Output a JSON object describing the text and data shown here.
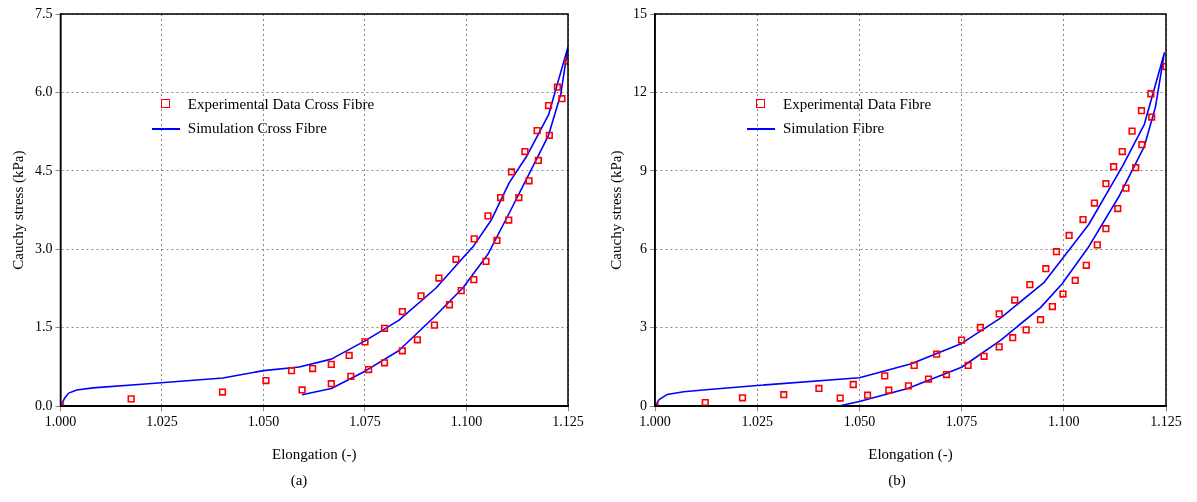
{
  "chart_data": [
    {
      "type": "scatter",
      "xlabel": "Elongation (-)",
      "ylabel": "Cauchy stress (kPa)",
      "annotations": [
        "(a)"
      ],
      "grid": true,
      "legend": "top",
      "xlim": [
        1.0,
        1.125
      ],
      "xticks": [
        {
          "value": 1.0,
          "label": "1.000"
        },
        1.025,
        {
          "value": 1.05,
          "label": "1.050"
        },
        1.075,
        {
          "value": 1.1,
          "label": "1.100"
        },
        1.125
      ],
      "ylim": [
        0,
        7.5
      ],
      "yticks": [
        {
          "value": 0,
          "label": "0.0"
        },
        1.5,
        {
          "value": 3,
          "label": "3.0"
        },
        4.5,
        {
          "value": 6,
          "label": "6.0"
        },
        7.5
      ],
      "series": [
        {
          "name": "Experimental Data Cross Fibre",
          "type": "scatter",
          "marker": "square",
          "color": "#ff0000",
          "x": [
            1.0,
            1.0174,
            1.0399,
            1.0506,
            1.0569,
            1.0595,
            1.0621,
            1.0667,
            1.0667,
            1.0711,
            1.0715,
            1.075,
            1.0759,
            1.0798,
            1.0798,
            1.0842,
            1.0842,
            1.0888,
            1.0879,
            1.0932,
            1.0921,
            1.0974,
            1.0958,
            1.0987,
            1.1019,
            1.1018,
            1.1048,
            1.1053,
            1.1075,
            1.1084,
            1.1104,
            1.1111,
            1.1129,
            1.1144,
            1.1154,
            1.1174,
            1.1177,
            1.1202,
            1.1204,
            1.1224,
            1.1235,
            1.125
          ],
          "values": [
            0,
            0.14,
            0.27,
            0.49,
            0.68,
            0.31,
            0.72,
            0.8,
            0.43,
            0.97,
            0.57,
            1.23,
            0.7,
            1.49,
            0.83,
            1.81,
            1.06,
            2.11,
            1.27,
            2.45,
            1.55,
            2.81,
            1.94,
            2.21,
            3.2,
            2.42,
            2.77,
            3.64,
            3.17,
            3.99,
            3.56,
            4.48,
            3.99,
            4.87,
            4.31,
            5.27,
            4.7,
            5.75,
            5.18,
            6.1,
            5.88,
            6.6
          ]
        },
        {
          "name": "Simulation Cross Fibre",
          "type": "line",
          "color": "#0000ff",
          "x": [
            1.0,
            1.001,
            1.002,
            1.004,
            1.008,
            1.02,
            1.04,
            1.05,
            1.0588,
            1.0667,
            1.075,
            1.0833,
            1.0925,
            1.1018,
            1.1061,
            1.1105,
            1.1149,
            1.1202,
            1.125,
            1.1232,
            1.1202,
            1.1158,
            1.1105,
            1.1053,
            1.0991,
            1.0921,
            1.0833,
            1.075,
            1.0667,
            1.0595
          ],
          "values": [
            0,
            0.15,
            0.25,
            0.31,
            0.35,
            0.42,
            0.54,
            0.68,
            0.75,
            0.9,
            1.25,
            1.64,
            2.26,
            3.07,
            3.56,
            4.27,
            4.79,
            5.57,
            6.87,
            5.96,
            5.18,
            4.5,
            3.69,
            2.91,
            2.26,
            1.71,
            1.06,
            0.67,
            0.34,
            0.22
          ]
        }
      ]
    },
    {
      "type": "scatter",
      "xlabel": "Elongation (-)",
      "ylabel": "Cauchy stress (kPa)",
      "annotations": [
        "(b)"
      ],
      "grid": true,
      "legend": "top",
      "xlim": [
        1.0,
        1.125
      ],
      "xticks": [
        {
          "value": 1.0,
          "label": "1.000"
        },
        1.025,
        {
          "value": 1.05,
          "label": "1.050"
        },
        1.075,
        {
          "value": 1.1,
          "label": "1.100"
        },
        1.125
      ],
      "ylim": [
        0,
        15
      ],
      "yticks": [
        0,
        3,
        6,
        9,
        12,
        15
      ],
      "series": [
        {
          "name": "Experimental Data Fibre",
          "type": "scatter",
          "marker": "square",
          "color": "#ff0000",
          "x": [
            1.0,
            1.0123,
            1.0214,
            1.0315,
            1.0401,
            1.0453,
            1.0485,
            1.052,
            1.0562,
            1.0572,
            1.062,
            1.0669,
            1.0713,
            1.0634,
            1.0689,
            1.075,
            1.0766,
            1.0805,
            1.0796,
            1.0842,
            1.0842,
            1.0875,
            1.088,
            1.0908,
            1.0917,
            1.0943,
            1.0956,
            1.0972,
            1.0982,
            1.0998,
            1.1013,
            1.1028,
            1.1047,
            1.1055,
            1.1075,
            1.1082,
            1.1103,
            1.1103,
            1.1122,
            1.1132,
            1.1143,
            1.1152,
            1.1167,
            1.1176,
            1.119,
            1.1191,
            1.1213,
            1.1215,
            1.125
          ],
          "values": [
            0,
            0.14,
            0.32,
            0.44,
            0.68,
            0.31,
            0.83,
            0.42,
            1.16,
            0.61,
            0.78,
            1.04,
            1.21,
            1.56,
            1.99,
            2.53,
            1.56,
            1.91,
            3.01,
            2.27,
            3.53,
            2.62,
            4.06,
            2.92,
            4.65,
            3.31,
            5.26,
            3.81,
            5.91,
            4.29,
            6.53,
            4.81,
            7.14,
            5.39,
            7.77,
            6.17,
            8.51,
            6.79,
            9.16,
            7.56,
            9.74,
            8.34,
            10.52,
            9.12,
            11.3,
            10.0,
            11.95,
            11.06,
            12.99
          ]
        },
        {
          "name": "Simulation Fibre",
          "type": "line",
          "color": "#0000ff",
          "x": [
            1.0,
            1.001,
            1.003,
            1.007,
            1.0132,
            1.025,
            1.05,
            1.0627,
            1.075,
            1.0846,
            1.0952,
            1.1061,
            1.1145,
            1.1197,
            1.1246,
            1.1224,
            1.1197,
            1.1136,
            1.1061,
            1.0996,
            1.0943,
            1.0846,
            1.075,
            1.0618,
            1.05,
            1.045
          ],
          "values": [
            0,
            0.25,
            0.45,
            0.55,
            0.64,
            0.79,
            1.09,
            1.62,
            2.4,
            3.38,
            4.74,
            6.95,
            9.22,
            10.78,
            13.51,
            11.43,
            9.94,
            8.05,
            6.1,
            4.68,
            3.77,
            2.53,
            1.49,
            0.68,
            0.18,
            0.01
          ]
        }
      ]
    }
  ]
}
